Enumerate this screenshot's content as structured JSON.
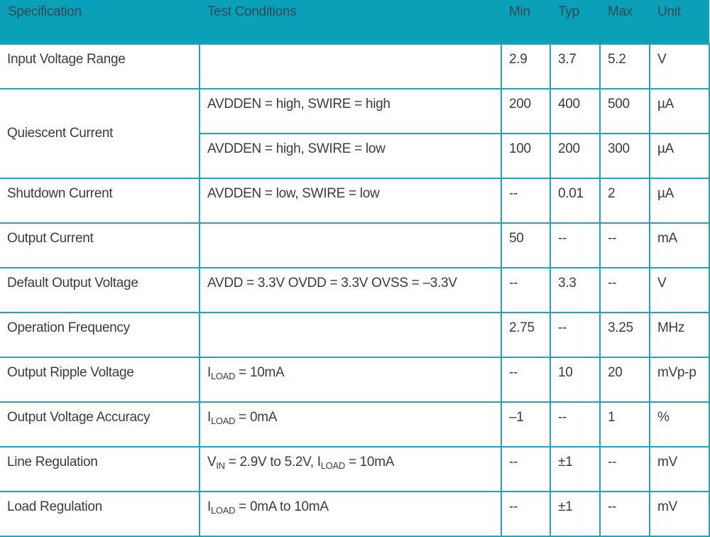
{
  "header": {
    "specification": "Specification",
    "conditions": "Test Conditions",
    "min": "Min",
    "typ": "Typ",
    "max": "Max",
    "unit": "Unit"
  },
  "rows": [
    {
      "spec": "Input Voltage Range",
      "cond": "",
      "min": "2.9",
      "typ": "3.7",
      "max": "5.2",
      "unit": "V"
    },
    {
      "spec": "Quiescent Current",
      "cond": "AVDDEN = high, SWIRE = high",
      "min": "200",
      "typ": "400",
      "max": "500",
      "unit": "µA"
    },
    {
      "spec": "",
      "cond": "AVDDEN = high, SWIRE = low",
      "min": "100",
      "typ": "200",
      "max": "300",
      "unit": "µA"
    },
    {
      "spec": "Shutdown Current",
      "cond": "AVDDEN = low, SWIRE = low",
      "min": "--",
      "typ": "0.01",
      "max": "2",
      "unit": "µA"
    },
    {
      "spec": "Output Current",
      "cond": "",
      "min": "50",
      "typ": "--",
      "max": "--",
      "unit": "mA"
    },
    {
      "spec": "Default Output Voltage",
      "cond": "AVDD = 3.3V OVDD = 3.3V OVSS = –3.3V",
      "min": "--",
      "typ": "3.3",
      "max": "--",
      "unit": "V"
    },
    {
      "spec": "Operation Frequency",
      "cond": "",
      "min": "2.75",
      "typ": "--",
      "max": "3.25",
      "unit": "MHz"
    },
    {
      "spec": "Output Ripple Voltage",
      "cond": {
        "a": "I",
        "a_sub": "LOAD",
        "b": " = 10mA"
      },
      "min": "--",
      "typ": "10",
      "max": "20",
      "unit": "mVp-p"
    },
    {
      "spec": "Output Voltage Accuracy",
      "cond": {
        "a": "I",
        "a_sub": "LOAD",
        "b": " = 0mA"
      },
      "min": "–1",
      "typ": "--",
      "max": "1",
      "unit": "%"
    },
    {
      "spec": "Line Regulation",
      "cond": {
        "a": "V",
        "a_sub": "IN",
        "b": " = 2.9V to 5.2V, I",
        "b_sub": "LOAD",
        "c": " = 10mA"
      },
      "min": "--",
      "typ": "±1",
      "max": "--",
      "unit": "mV"
    },
    {
      "spec": "Load Regulation",
      "cond": {
        "a": "I",
        "a_sub": "LOAD",
        "b": " = 0mA to 10mA"
      },
      "min": "--",
      "typ": "±1",
      "max": "--",
      "unit": "mV"
    }
  ],
  "colors": {
    "header_bg": "#0aa0b8",
    "border": "#27a3b8"
  }
}
